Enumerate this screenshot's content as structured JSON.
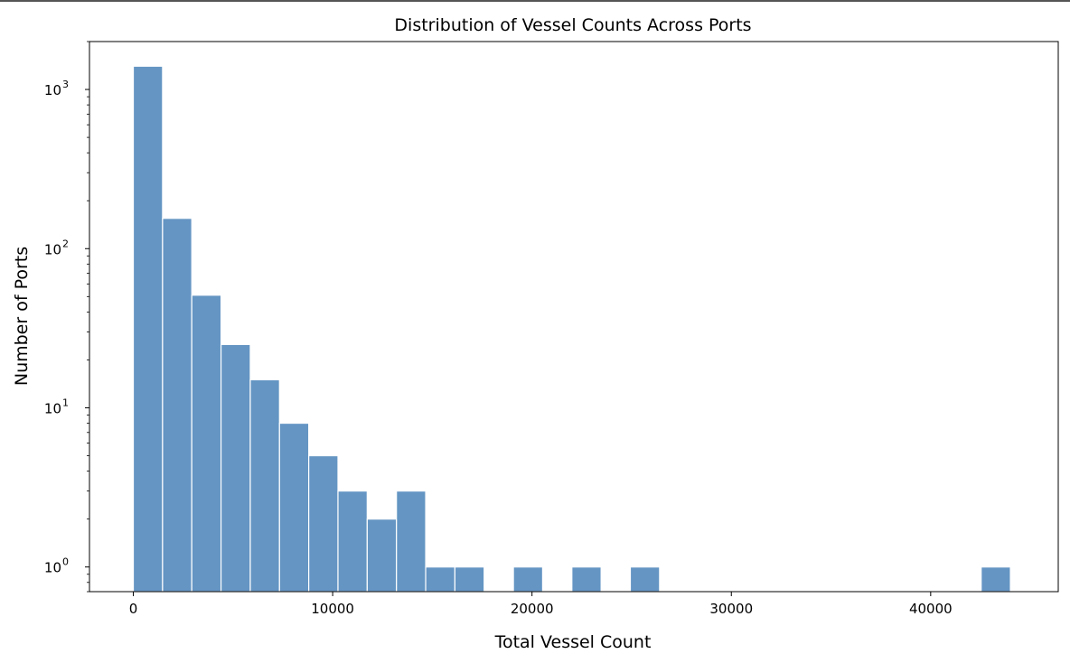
{
  "chart_data": {
    "type": "bar",
    "subtype": "histogram",
    "title": "Distribution of Vessel Counts Across Ports",
    "xlabel": "Total Vessel Count",
    "ylabel": "Number of Ports",
    "y_scale": "log",
    "xlim": [
      -2200,
      46400
    ],
    "ylim": [
      0.7,
      2000
    ],
    "x_ticks": [
      0,
      10000,
      20000,
      30000,
      40000
    ],
    "x_tick_labels": [
      "0",
      "10000",
      "20000",
      "30000",
      "40000"
    ],
    "y_ticks": [
      1,
      10,
      100,
      1000
    ],
    "y_tick_labels": [
      {
        "base": "10",
        "exp": "0"
      },
      {
        "base": "10",
        "exp": "1"
      },
      {
        "base": "10",
        "exp": "2"
      },
      {
        "base": "10",
        "exp": "3"
      }
    ],
    "grid": false,
    "bar_color": "#6495c3",
    "bar_edge_color": "#ffffff",
    "bins": [
      {
        "x0": 0,
        "x1": 1467,
        "count": 1400
      },
      {
        "x0": 1467,
        "x1": 2933,
        "count": 155
      },
      {
        "x0": 2933,
        "x1": 4400,
        "count": 51
      },
      {
        "x0": 4400,
        "x1": 5867,
        "count": 25
      },
      {
        "x0": 5867,
        "x1": 7333,
        "count": 15
      },
      {
        "x0": 7333,
        "x1": 8800,
        "count": 8
      },
      {
        "x0": 8800,
        "x1": 10267,
        "count": 5
      },
      {
        "x0": 10267,
        "x1": 11733,
        "count": 3
      },
      {
        "x0": 11733,
        "x1": 13200,
        "count": 2
      },
      {
        "x0": 13200,
        "x1": 14667,
        "count": 3
      },
      {
        "x0": 14667,
        "x1": 16133,
        "count": 1
      },
      {
        "x0": 16133,
        "x1": 17600,
        "count": 1
      },
      {
        "x0": 19067,
        "x1": 20533,
        "count": 1
      },
      {
        "x0": 22000,
        "x1": 23467,
        "count": 1
      },
      {
        "x0": 24933,
        "x1": 26400,
        "count": 1
      },
      {
        "x0": 42533,
        "x1": 44000,
        "count": 1
      }
    ]
  }
}
